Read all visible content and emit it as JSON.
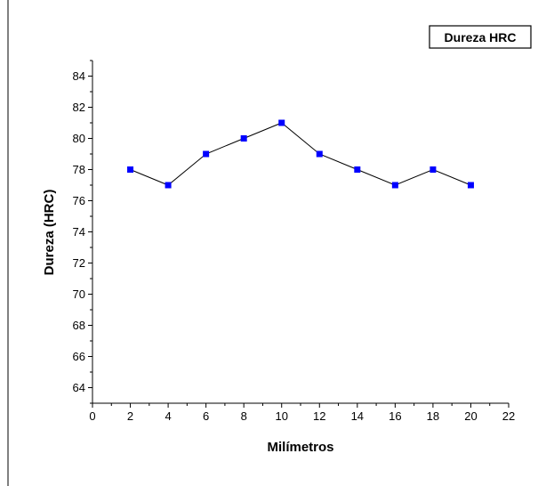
{
  "chart_data": {
    "type": "line",
    "title": "",
    "xlabel": "Milímetros",
    "ylabel": "Dureza (HRC)",
    "xlim": [
      0,
      22
    ],
    "ylim": [
      63,
      85
    ],
    "x_ticks": [
      "0",
      "2",
      "4",
      "6",
      "8",
      "10",
      "12",
      "14",
      "16",
      "18",
      "20",
      "22"
    ],
    "y_ticks": [
      "64",
      "66",
      "68",
      "70",
      "72",
      "74",
      "76",
      "78",
      "80",
      "82",
      "84"
    ],
    "grid": false,
    "legend_position": "top-right",
    "series": [
      {
        "name": "Dureza HRC",
        "color": "#0000ff",
        "line_color": "#000000",
        "marker": "square",
        "x": [
          2,
          4,
          6,
          8,
          10,
          12,
          14,
          16,
          18,
          20
        ],
        "y": [
          78,
          77,
          79,
          80,
          81,
          79,
          78,
          77,
          78,
          77
        ]
      }
    ]
  }
}
